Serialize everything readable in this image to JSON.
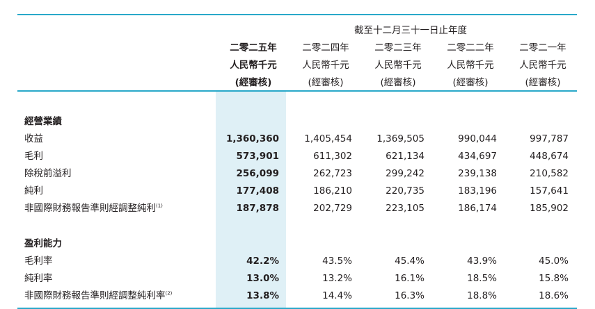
{
  "header": {
    "period_title": "截至十二月三十一日止年度",
    "columns": [
      {
        "year": "二零二五年",
        "unit": "人民幣千元",
        "note": "(經審核)"
      },
      {
        "year": "二零二四年",
        "unit": "人民幣千元",
        "note": "(經審核)"
      },
      {
        "year": "二零二三年",
        "unit": "人民幣千元",
        "note": "(經審核)"
      },
      {
        "year": "二零二二年",
        "unit": "人民幣千元",
        "note": "(經審核)"
      },
      {
        "year": "二零二一年",
        "unit": "人民幣千元",
        "note": "(經審核)"
      }
    ]
  },
  "sections": [
    {
      "title": "經營業績",
      "rows": [
        {
          "label": "收益",
          "sup": "",
          "values": [
            "1,360,360",
            "1,405,454",
            "1,369,505",
            "990,044",
            "997,787"
          ]
        },
        {
          "label": "毛利",
          "sup": "",
          "values": [
            "573,901",
            "611,302",
            "621,134",
            "434,697",
            "448,674"
          ]
        },
        {
          "label": "除稅前溢利",
          "sup": "",
          "values": [
            "256,099",
            "262,723",
            "299,242",
            "239,138",
            "210,582"
          ]
        },
        {
          "label": "純利",
          "sup": "",
          "values": [
            "177,408",
            "186,210",
            "220,735",
            "183,196",
            "157,641"
          ]
        },
        {
          "label": "非國際財務報告準則經調整純利",
          "sup": "(1)",
          "values": [
            "187,878",
            "202,729",
            "223,105",
            "186,174",
            "185,902"
          ]
        }
      ]
    },
    {
      "title": "盈利能力",
      "rows": [
        {
          "label": "毛利率",
          "sup": "",
          "values": [
            "42.2%",
            "43.5%",
            "45.4%",
            "43.9%",
            "45.0%"
          ]
        },
        {
          "label": "純利率",
          "sup": "",
          "values": [
            "13.0%",
            "13.2%",
            "16.1%",
            "18.5%",
            "15.8%"
          ]
        },
        {
          "label": "非國際財務報告準則經調整純利率",
          "sup": "(2)",
          "values": [
            "13.8%",
            "14.4%",
            "16.3%",
            "18.8%",
            "18.6%"
          ]
        }
      ]
    }
  ],
  "colors": {
    "rule": "#29a8c9",
    "highlight": "#dff0f6",
    "text": "#231f20"
  }
}
